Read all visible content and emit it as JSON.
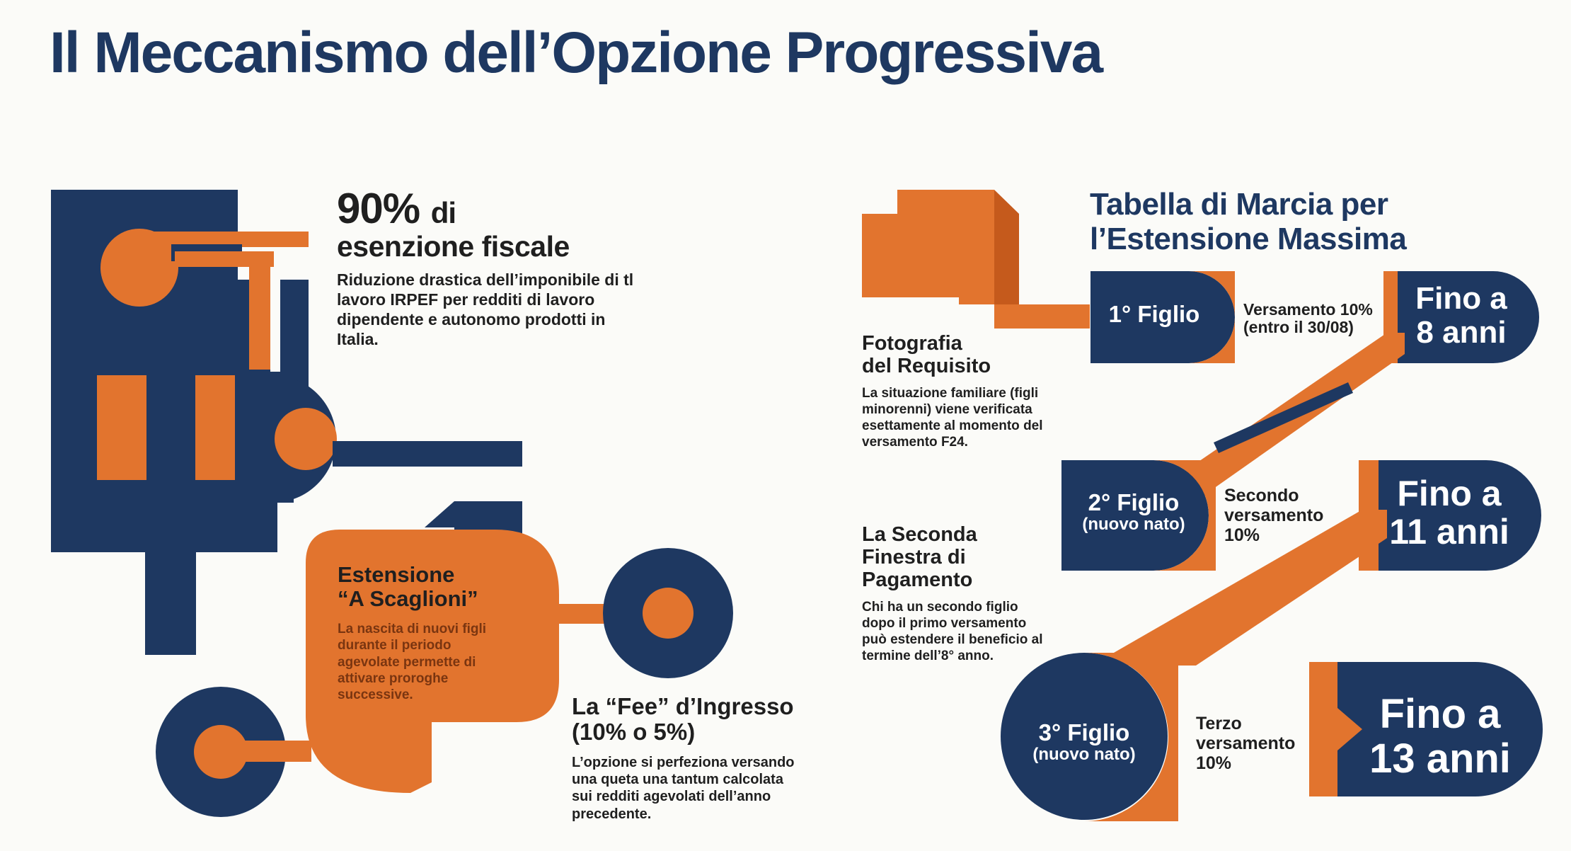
{
  "colors": {
    "navy": "#1e3861",
    "orange": "#e2742e",
    "dark_orange": "#c55a1c",
    "background": "#fbfbf8",
    "text": "#1f1f1f"
  },
  "title": "Il Meccanismo dell’Opzione Progressiva",
  "exemption": {
    "percent": "90%",
    "percent_suffix": "di",
    "heading_line2": "esenzione fiscale",
    "body": "Riduzione drastica dell’imponibile di tl lavoro IRPEF per redditi di lavoro dipendente e autonomo prodotti in Italia."
  },
  "extension": {
    "heading_line1": "Estensione",
    "heading_line2": "“A Scaglioni”",
    "body": "La nascita di nuovi figli durante il periodo agevolate permette di attivare proroghe successive."
  },
  "fee": {
    "heading_line1": "La “Fee” d’Ingresso",
    "heading_line2": "(10% o 5%)",
    "body": "L’opzione si perfeziona versando una queta una tantum calcolata sui redditi agevolati dell’anno precedente."
  },
  "requisite": {
    "heading_line1": "Fotografia",
    "heading_line2": "del Requisito",
    "body": "La situazione familiare (figli minorenni) viene verificata esettamente al momento del versamento F24."
  },
  "second_window": {
    "heading_line1": "La Seconda",
    "heading_line2": "Finestra di",
    "heading_line3": "Pagamento",
    "body": "Chi ha un secondo figlio dopo il primo versamento può estendere il beneficio al termine dell’8° anno."
  },
  "roadmap": {
    "heading_line1": "Tabella di Marcia per",
    "heading_line2": "l’Estensione Massima",
    "steps": [
      {
        "child": "1° Figlio",
        "sub": "",
        "note_line1": "Versamento 10%",
        "note_line2": "(entro il 30/08)",
        "note_line3": "",
        "result_line1": "Fino a",
        "result_line2": "8 anni"
      },
      {
        "child": "2° Figlio",
        "sub": "(nuovo nato)",
        "note_line1": "Secondo",
        "note_line2": "versamento",
        "note_line3": "10%",
        "result_line1": "Fino a",
        "result_line2": "11 anni"
      },
      {
        "child": "3° Figlio",
        "sub": "(nuovo nato)",
        "note_line1": "Terzo",
        "note_line2": "versamento",
        "note_line3": "10%",
        "result_line1": "Fino a",
        "result_line2": "13 anni"
      }
    ]
  }
}
